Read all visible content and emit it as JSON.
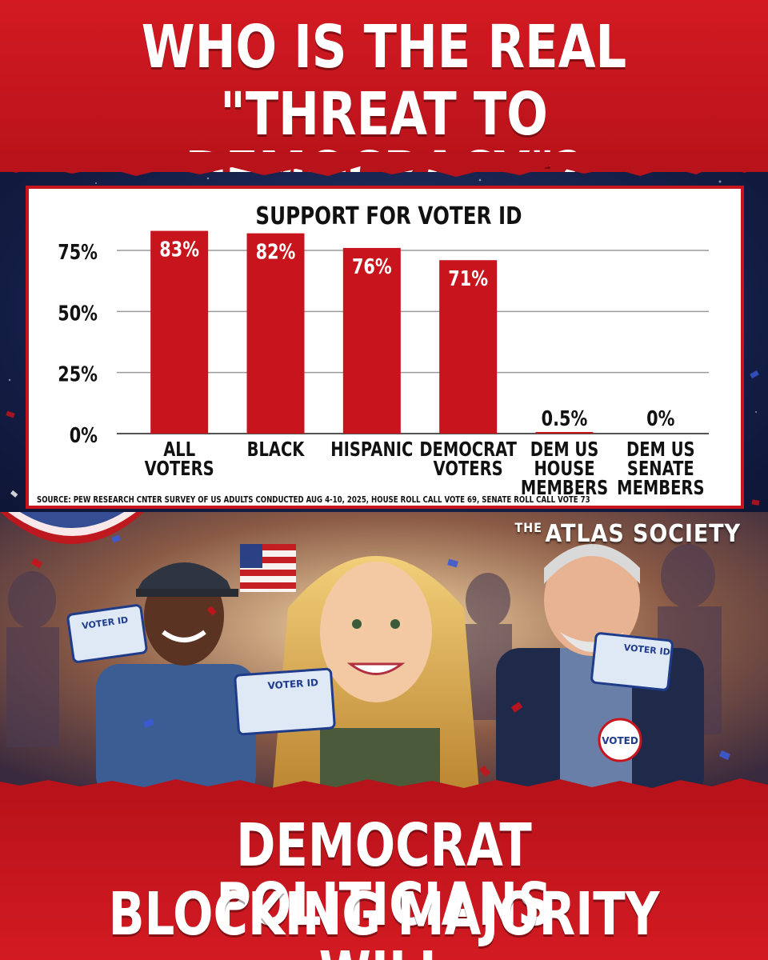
{
  "header": {
    "line1": "WHO IS THE REAL",
    "line2": "\"THREAT TO DEMOCRACY\"?"
  },
  "chart_data": {
    "type": "bar",
    "title": "SUPPORT FOR VOTER ID",
    "categories": [
      [
        "ALL",
        "VOTERS"
      ],
      [
        "BLACK"
      ],
      [
        "HISPANIC"
      ],
      [
        "DEMOCRAT",
        "VOTERS"
      ],
      [
        "DEM US",
        "HOUSE",
        "MEMBERS"
      ],
      [
        "DEM US",
        "SENATE",
        "MEMBERS"
      ]
    ],
    "values": [
      83,
      82,
      76,
      71,
      0.5,
      0
    ],
    "data_labels": [
      "83%",
      "82%",
      "76%",
      "71%",
      "0.5%",
      "0%"
    ],
    "ylim": [
      0,
      83
    ],
    "yticks": [
      0,
      25,
      50,
      75
    ],
    "ytick_labels": [
      "0%",
      "25%",
      "50%",
      "75%"
    ],
    "grid": true,
    "bar_color": "#c8141c",
    "source": "SOURCE: PEW RESEARCH CNTER SURVEY OF US ADULTS CONDUCTED AUG 4-10, 2025, HOUSE ROLL CALL VOTE 69, SENATE ROLL CALL VOTE 73"
  },
  "brand": {
    "the": "THE",
    "name": "ATLAS SOCIETY"
  },
  "photo": {
    "cards": [
      "VOTER ID",
      "VOTER ID",
      "VOTER ID"
    ],
    "button": "VOTED"
  },
  "footer": {
    "line1": "DEMOCRAT POLITICIANS",
    "line2": "BLOCKING MAJORITY WILL"
  },
  "colors": {
    "brand_red": "#c8141c",
    "night_blue": "#15204a",
    "white": "#ffffff"
  }
}
